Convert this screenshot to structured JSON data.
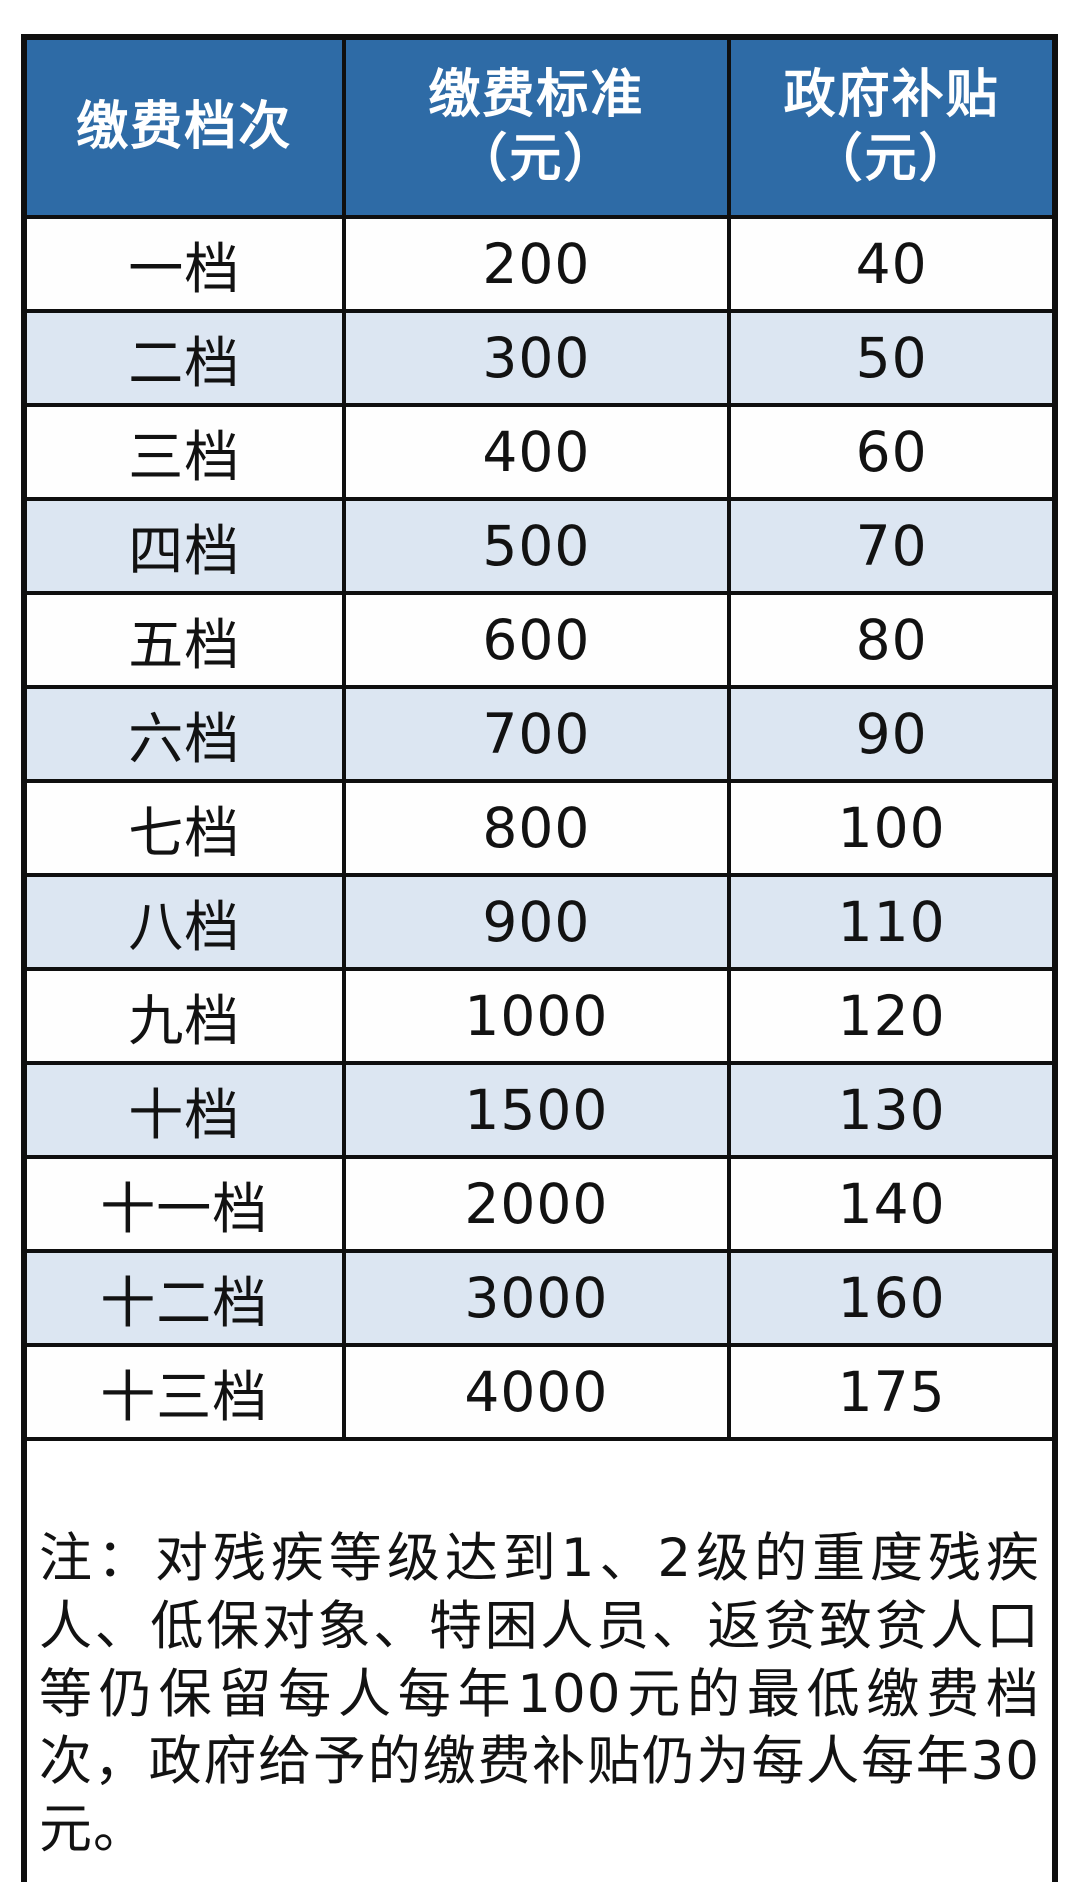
{
  "table": {
    "headers": [
      {
        "line1": "缴费档次",
        "line2": ""
      },
      {
        "line1": "缴费标准",
        "line2": "（元）"
      },
      {
        "line1": "政府补贴",
        "line2": "（元）"
      }
    ],
    "rows": [
      {
        "tier": "一档",
        "standard": "200",
        "subsidy": "40"
      },
      {
        "tier": "二档",
        "standard": "300",
        "subsidy": "50"
      },
      {
        "tier": "三档",
        "standard": "400",
        "subsidy": "60"
      },
      {
        "tier": "四档",
        "standard": "500",
        "subsidy": "70"
      },
      {
        "tier": "五档",
        "standard": "600",
        "subsidy": "80"
      },
      {
        "tier": "六档",
        "standard": "700",
        "subsidy": "90"
      },
      {
        "tier": "七档",
        "standard": "800",
        "subsidy": "100"
      },
      {
        "tier": "八档",
        "standard": "900",
        "subsidy": "110"
      },
      {
        "tier": "九档",
        "standard": "1000",
        "subsidy": "120"
      },
      {
        "tier": "十档",
        "standard": "1500",
        "subsidy": "130"
      },
      {
        "tier": "十一档",
        "standard": "2000",
        "subsidy": "140"
      },
      {
        "tier": "十二档",
        "standard": "3000",
        "subsidy": "160"
      },
      {
        "tier": "十三档",
        "standard": "4000",
        "subsidy": "175"
      }
    ],
    "note": "注：对残疾等级达到1、2级的重度残疾人、低保对象、特困人员、返贫致贫人口等仍保留每人每年100元的最低缴费档次，政府给予的缴费补贴仍为每人每年30元。"
  },
  "colors": {
    "header_bg": "#2e6ba6",
    "header_text": "#ffffff",
    "row_bg": "#fefefe",
    "row_alt_bg": "#dce6f2",
    "border": "#0f0f0f",
    "body_text": "#121212"
  },
  "chart_data": {
    "type": "table",
    "title": "",
    "columns": [
      "缴费档次",
      "缴费标准（元）",
      "政府补贴（元）"
    ],
    "rows": [
      [
        "一档",
        200,
        40
      ],
      [
        "二档",
        300,
        50
      ],
      [
        "三档",
        400,
        60
      ],
      [
        "四档",
        500,
        70
      ],
      [
        "五档",
        600,
        80
      ],
      [
        "六档",
        700,
        90
      ],
      [
        "七档",
        800,
        100
      ],
      [
        "八档",
        900,
        110
      ],
      [
        "九档",
        1000,
        120
      ],
      [
        "十档",
        1500,
        130
      ],
      [
        "十一档",
        2000,
        140
      ],
      [
        "十二档",
        3000,
        160
      ],
      [
        "十三档",
        4000,
        175
      ]
    ],
    "note": "注：对残疾等级达到1、2级的重度残疾人、低保对象、特困人员、返贫致贫人口等仍保留每人每年100元的最低缴费档次，政府给予的缴费补贴仍为每人每年30元。",
    "layout": {
      "header_fill": "#2e6ba6",
      "alternating_row_fill": "#dce6f2",
      "grid": true
    }
  }
}
